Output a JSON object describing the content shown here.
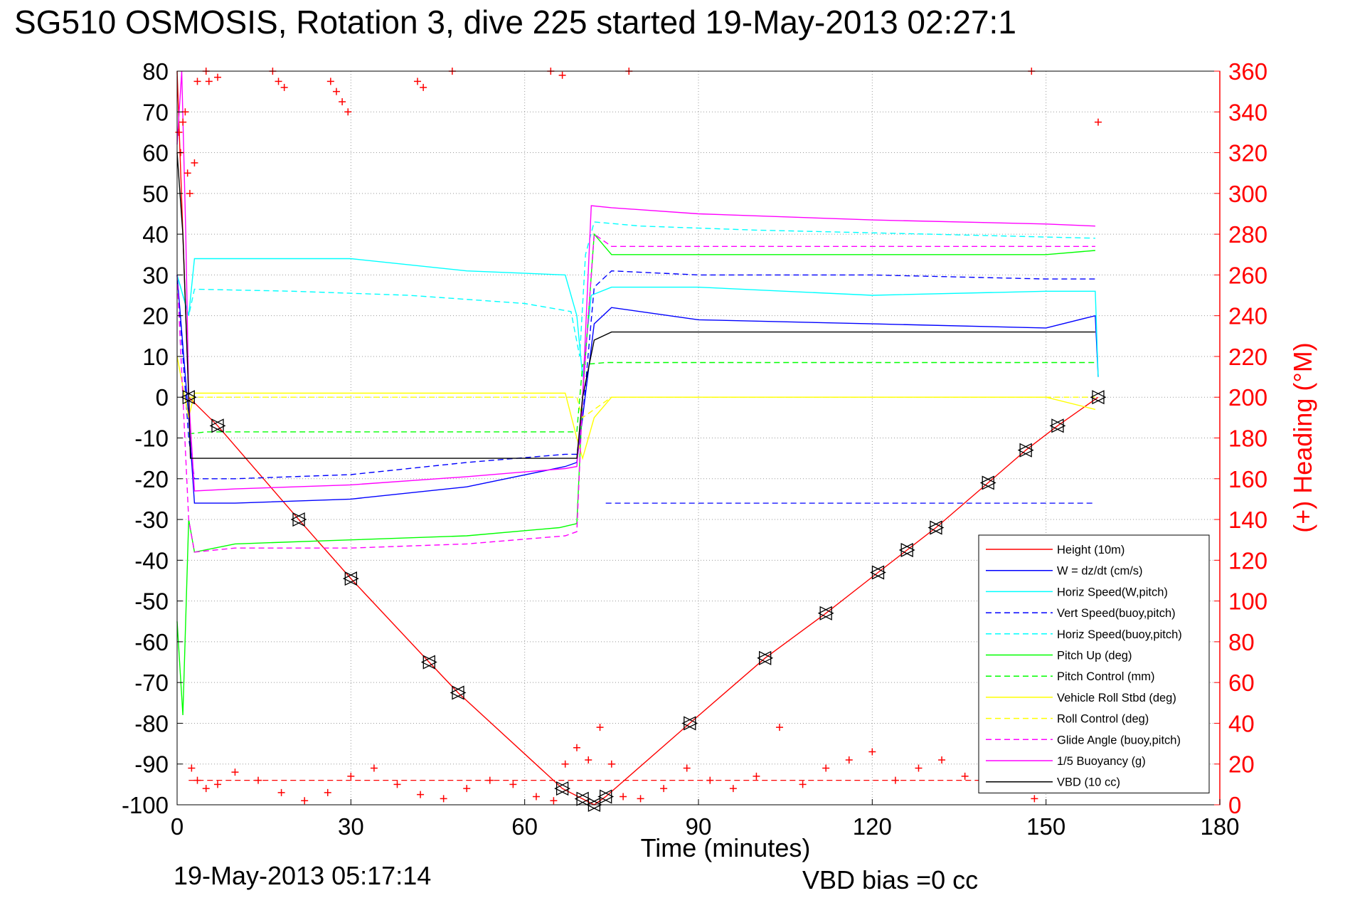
{
  "title": "SG510 OSMOSIS, Rotation 3, dive 225 started 19-May-2013 02:27:1",
  "footer": {
    "date": "19-May-2013 05:17:14",
    "vbd_bias": "VBD bias =0 cc"
  },
  "colors": {
    "red": "#ff0000",
    "blue": "#0000ff",
    "cyan": "#00ffff",
    "green": "#00ff00",
    "yellow": "#ffff00",
    "magenta": "#ff00ff",
    "black": "#000000"
  },
  "chart_data": {
    "type": "line",
    "xlabel": "Time (minutes)",
    "ylabel": "",
    "y2label": "(+) Heading (°M)",
    "xlim": [
      0,
      180
    ],
    "ylim": [
      -100,
      80
    ],
    "y2lim": [
      0,
      360
    ],
    "xticks": [
      0,
      30,
      60,
      90,
      120,
      150,
      180
    ],
    "yticks": [
      80,
      70,
      60,
      50,
      40,
      30,
      20,
      10,
      0,
      -10,
      -20,
      -30,
      -40,
      -50,
      -60,
      -70,
      -80,
      -90,
      -100
    ],
    "y2ticks": [
      360,
      340,
      320,
      300,
      280,
      260,
      240,
      220,
      200,
      180,
      160,
      140,
      120,
      100,
      80,
      60,
      40,
      20,
      0
    ],
    "grid": true,
    "legend_position": "bottom-right",
    "series": [
      {
        "name": "Height (10m)",
        "color": "#ff0000",
        "dash": false,
        "x": [
          0,
          2,
          7,
          21,
          30,
          43.5,
          48.5,
          66.5,
          72,
          74,
          88.5,
          101.5,
          112,
          121,
          126,
          131,
          140,
          146.5,
          152,
          159
        ],
        "y": [
          80,
          0,
          -7,
          -30,
          -44.5,
          -65,
          -72.5,
          -96,
          -100,
          -98,
          -80,
          -64,
          -53,
          -43,
          -37.5,
          -32,
          -21,
          -13,
          -7,
          0
        ]
      },
      {
        "name": "W = dz/dt (cm/s)",
        "color": "#0000ff",
        "dash": false,
        "x": [
          0,
          2,
          3,
          10,
          30,
          50,
          67,
          69,
          70,
          72,
          75,
          90,
          120,
          150,
          158.5,
          159
        ],
        "y": [
          30,
          -5,
          -26,
          -26,
          -25,
          -22,
          -17,
          -16,
          -5,
          18,
          22,
          19,
          18,
          17,
          20,
          5
        ]
      },
      {
        "name": "Horiz Speed(W,pitch)",
        "color": "#00ffff",
        "dash": false,
        "x": [
          0,
          2,
          3,
          10,
          30,
          50,
          67,
          69,
          70,
          71.5,
          75,
          90,
          120,
          150,
          158.5,
          159
        ],
        "y": [
          30,
          20,
          34,
          34,
          34,
          31,
          30,
          20,
          5,
          25,
          27,
          27,
          25,
          26,
          26,
          5
        ]
      },
      {
        "name": "Vert Speed(buoy,pitch)",
        "color": "#0000ff",
        "dash": true,
        "x": [
          0,
          2,
          3,
          10,
          30,
          50,
          67,
          69,
          70,
          72,
          75,
          90,
          120,
          150,
          158.5
        ],
        "y": [
          30,
          -10,
          -20,
          -20,
          -19,
          -16,
          -14,
          -14,
          -5,
          27,
          31,
          30,
          30,
          29,
          29
        ]
      },
      {
        "name": "Horiz Speed(buoy,pitch)",
        "color": "#00ffff",
        "dash": true,
        "x": [
          0,
          2,
          3,
          20,
          40,
          60,
          68,
          69.5,
          70.5,
          72,
          80,
          100,
          130,
          158.5
        ],
        "y": [
          30,
          20,
          26.5,
          26,
          25,
          23,
          21,
          10,
          35,
          43,
          42,
          41,
          40,
          39
        ]
      },
      {
        "name": "Pitch Up (deg)",
        "color": "#00ff00",
        "dash": false,
        "x": [
          0,
          1,
          2,
          3,
          10,
          30,
          50,
          66,
          69,
          70,
          72,
          75,
          90,
          120,
          150,
          158.5
        ],
        "y": [
          -55,
          -78,
          -30,
          -38,
          -36,
          -35,
          -34,
          -32,
          -31,
          0,
          40,
          35,
          35,
          35,
          35,
          36
        ]
      },
      {
        "name": "Pitch Control (mm)",
        "color": "#00ff00",
        "dash": true,
        "x": [
          2,
          5,
          69,
          70,
          74,
          158.5
        ],
        "y": [
          -9,
          -8.5,
          -8.5,
          8,
          8.5,
          8.5
        ]
      },
      {
        "name": "Vehicle Roll Stbd (deg)",
        "color": "#ffff00",
        "dash": false,
        "x": [
          0,
          2,
          3,
          10,
          30,
          50,
          67,
          69,
          70,
          72,
          75,
          90,
          120,
          147,
          148,
          150,
          158.5
        ],
        "y": [
          10,
          -5,
          1,
          1,
          1,
          1,
          1,
          -10,
          -15,
          -5,
          0,
          0,
          0,
          0,
          0,
          0,
          -3
        ]
      },
      {
        "name": "Roll Control (deg)",
        "color": "#ffff00",
        "dash": true,
        "x": [
          2,
          5,
          66,
          69,
          70,
          75,
          158.5
        ],
        "y": [
          0,
          0,
          0,
          0,
          -5,
          0,
          0
        ]
      },
      {
        "name": "Glide Angle (buoy,pitch)",
        "color": "#ff00ff",
        "dash": true,
        "x": [
          0,
          2,
          3,
          10,
          30,
          50,
          67,
          69,
          70,
          72,
          75,
          90,
          120,
          150,
          158.5
        ],
        "y": [
          30,
          -30,
          -38,
          -37,
          -37,
          -36,
          -34,
          -33,
          0,
          40,
          37,
          37,
          37,
          37,
          37
        ]
      },
      {
        "name": "1/5 Buoyancy (g)",
        "color": "#ff00ff",
        "dash": false,
        "x": [
          0,
          0.8,
          1.5,
          2,
          3,
          10,
          30,
          50,
          67,
          69,
          70,
          71.5,
          75,
          90,
          120,
          150,
          158.5
        ],
        "y": [
          62,
          80,
          40,
          0,
          -23,
          -22.5,
          -21.5,
          -19.5,
          -17.5,
          -17,
          0,
          47,
          46.5,
          45,
          43.5,
          42.5,
          42
        ]
      },
      {
        "name": "VBD (10 cc)",
        "color": "#000000",
        "dash": false,
        "x": [
          0,
          1,
          2,
          2.3,
          10,
          40,
          69,
          70,
          72,
          75,
          158.5
        ],
        "y": [
          60,
          40,
          0,
          -15,
          -15,
          -15,
          -15,
          0,
          14,
          16,
          16
        ]
      }
    ],
    "reference_lines": [
      {
        "color": "#ff0000",
        "dash": true,
        "y": -94,
        "x": [
          2,
          158.5
        ]
      },
      {
        "color": "#0000ff",
        "dash": true,
        "y": -26,
        "x": [
          74,
          158.5
        ]
      }
    ],
    "heading_points": {
      "name": "Heading",
      "color": "#ff0000",
      "x": [
        0.3,
        0.6,
        1.0,
        1.4,
        1.8,
        2.2,
        3.0,
        3.5,
        5.0,
        5.5,
        7.0,
        16.5,
        17.5,
        18.5,
        26.5,
        27.5,
        28.5,
        29.5,
        41.5,
        42.5,
        47.5,
        64.5,
        66.5,
        78.0,
        147.5,
        159.0,
        2.5,
        3.5,
        5,
        7,
        10,
        14,
        18,
        22,
        26,
        30,
        34,
        38,
        42,
        46,
        50,
        54,
        58,
        62,
        65,
        67,
        69,
        71,
        73,
        75,
        77,
        80,
        84,
        88,
        92,
        96,
        100,
        104,
        108,
        112,
        116,
        120,
        124,
        128,
        132,
        136,
        140,
        144,
        148,
        152,
        156,
        158
      ],
      "y": [
        330,
        320,
        335,
        340,
        310,
        300,
        315,
        355,
        360,
        355,
        357,
        360,
        355,
        352,
        355,
        350,
        345,
        340,
        355,
        352,
        360,
        360,
        358,
        360,
        360,
        335,
        18,
        12,
        8,
        10,
        16,
        12,
        6,
        2,
        6,
        14,
        18,
        10,
        5,
        3,
        8,
        12,
        10,
        4,
        2,
        20,
        28,
        22,
        38,
        20,
        4,
        3,
        8,
        18,
        12,
        8,
        14,
        38,
        10,
        18,
        22,
        26,
        12,
        18,
        22,
        14,
        26,
        20,
        3,
        18,
        12,
        10
      ]
    },
    "markers": [
      {
        "shape": "triangle",
        "x": [
          2,
          7,
          21,
          30,
          43.5,
          48.5,
          66.5,
          70,
          72,
          74,
          88.5,
          101.5,
          112,
          121,
          126,
          131,
          140,
          146.5,
          152,
          159
        ]
      }
    ]
  }
}
